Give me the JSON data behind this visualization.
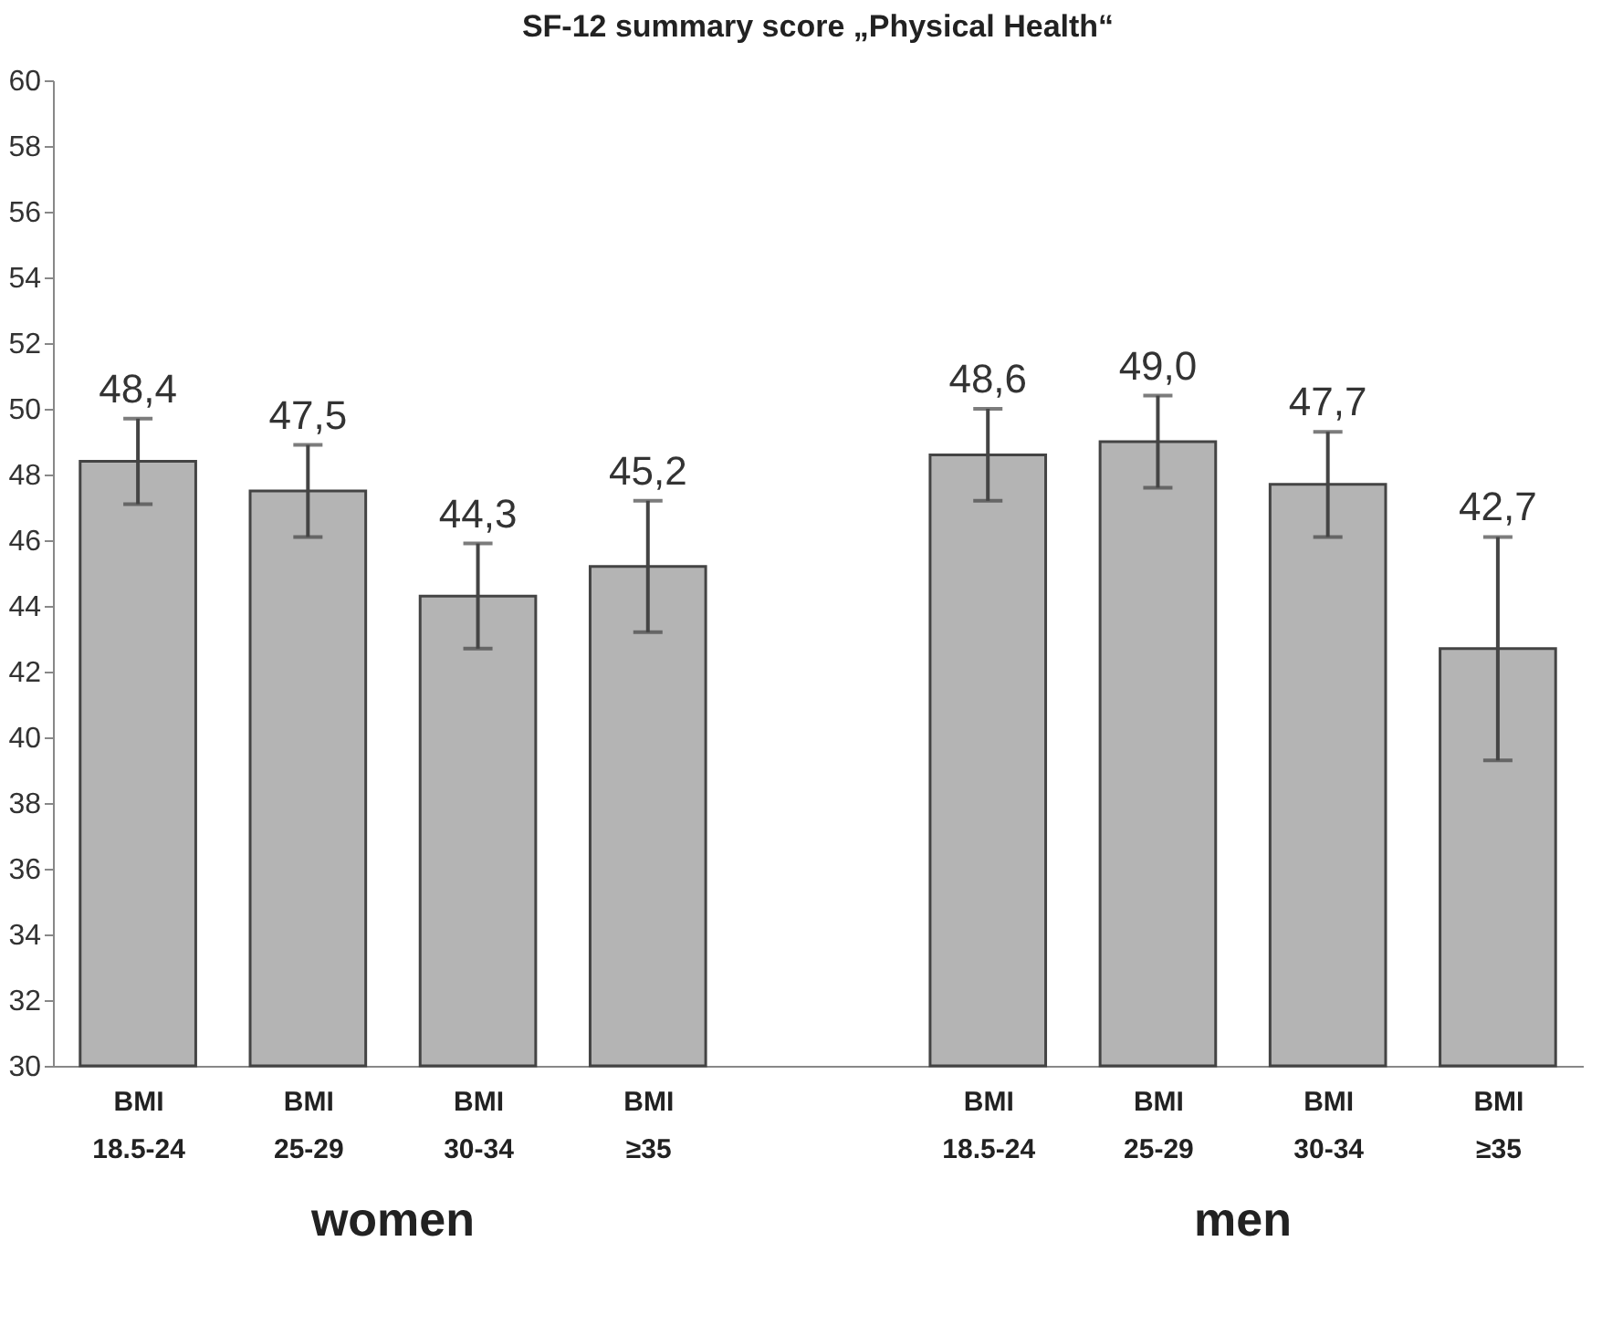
{
  "chart_data": {
    "type": "bar",
    "title": "SF-12 summary score „Physical Health“",
    "categories": [
      "BMI 18.5-24",
      "BMI 25-29",
      "BMI 30-34",
      "BMI ≥35",
      null,
      "BMI 18.5-24",
      "BMI 25-29",
      "BMI 30-34",
      "BMI ≥35"
    ],
    "values": [
      48.4,
      47.5,
      44.3,
      45.2,
      null,
      48.6,
      49.0,
      47.7,
      42.7
    ],
    "errors": [
      1.3,
      1.4,
      1.6,
      2.0,
      null,
      1.4,
      1.4,
      1.6,
      3.4
    ],
    "value_labels": [
      "48,4",
      "47,5",
      "44,3",
      "45,2",
      null,
      "48,6",
      "49,0",
      "47,7",
      "42,7"
    ],
    "color": "#b4b4b4",
    "ylim": [
      30,
      60
    ],
    "yticks": [
      30,
      32,
      34,
      36,
      38,
      40,
      42,
      44,
      46,
      48,
      50,
      52,
      54,
      56,
      58,
      60
    ],
    "annotations": [
      "women",
      "men"
    ]
  }
}
